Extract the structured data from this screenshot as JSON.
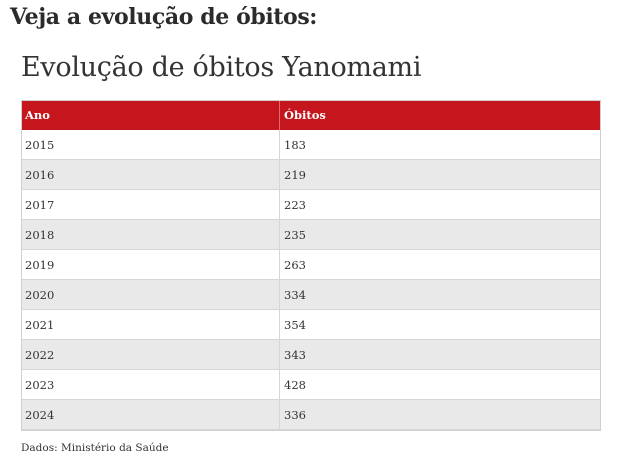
{
  "page": {
    "heading": "Veja a evolução de óbitos:"
  },
  "table_embed": {
    "title": "Evolução de óbitos Yanomami",
    "columns": [
      "Ano",
      "Óbitos"
    ],
    "rows": [
      [
        "2015",
        "183"
      ],
      [
        "2016",
        "219"
      ],
      [
        "2017",
        "223"
      ],
      [
        "2018",
        "235"
      ],
      [
        "2019",
        "263"
      ],
      [
        "2020",
        "334"
      ],
      [
        "2021",
        "354"
      ],
      [
        "2022",
        "343"
      ],
      [
        "2023",
        "428"
      ],
      [
        "2024",
        "336"
      ]
    ],
    "source": "Dados: Ministério da Saúde",
    "colors": {
      "header_bg": "#c4161c",
      "header_text": "#ffffff",
      "row_alt_bg": "#e9e9e9",
      "row_bg": "#ffffff"
    }
  },
  "chart_data": {
    "type": "table",
    "title": "Evolução de óbitos Yanomami",
    "columns": [
      "Ano",
      "Óbitos"
    ],
    "categories": [
      "2015",
      "2016",
      "2017",
      "2018",
      "2019",
      "2020",
      "2021",
      "2022",
      "2023",
      "2024"
    ],
    "values": [
      183,
      219,
      223,
      235,
      263,
      334,
      354,
      343,
      428,
      336
    ],
    "source": "Dados: Ministério da Saúde"
  }
}
